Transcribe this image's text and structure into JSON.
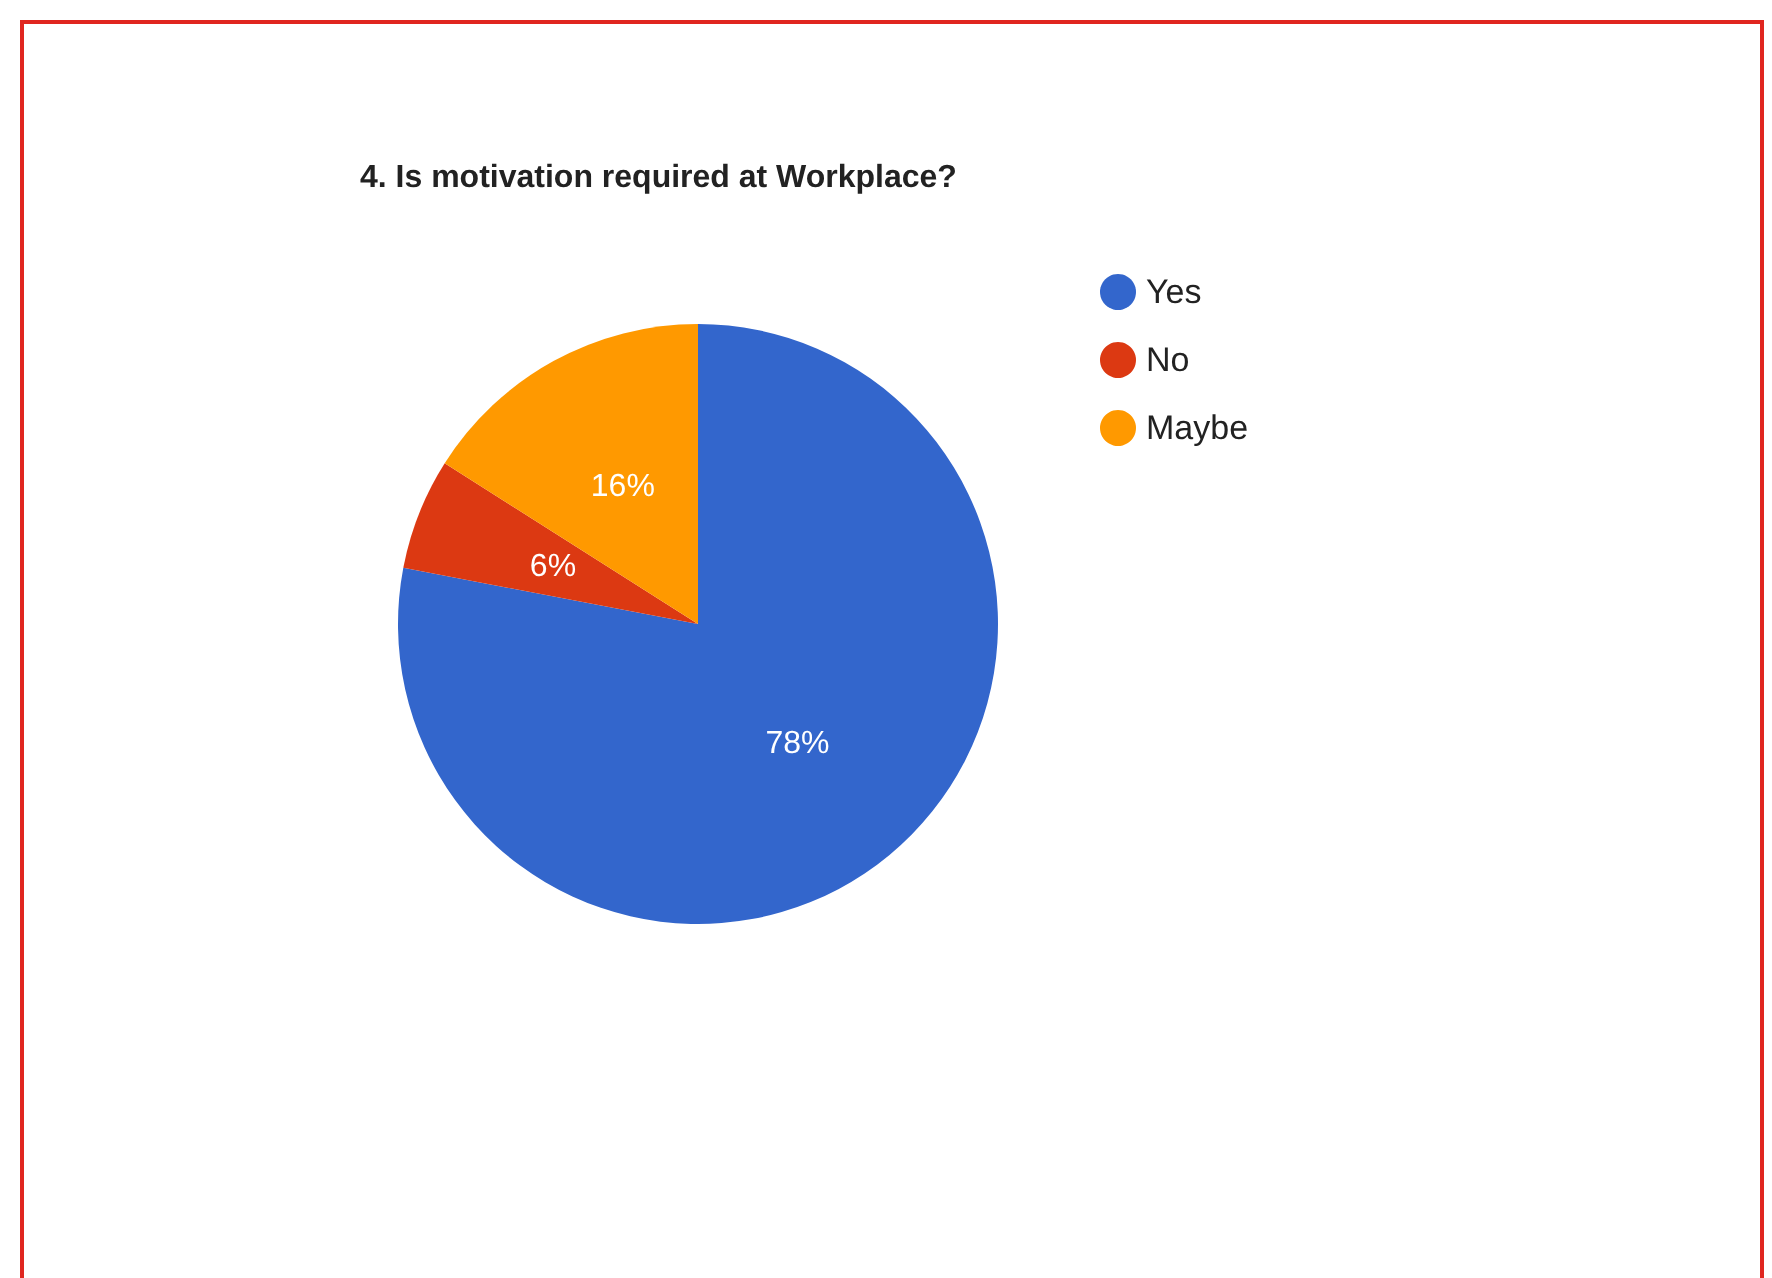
{
  "chart_data": {
    "type": "pie",
    "title": "4. Is motivation required at Workplace?",
    "categories": [
      "Yes",
      "No",
      "Maybe"
    ],
    "values": [
      78,
      6,
      16
    ],
    "colors": [
      "#3366cc",
      "#dc3912",
      "#ff9900"
    ],
    "value_labels": [
      "78%",
      "6%",
      "16%"
    ],
    "legend": "top right"
  }
}
